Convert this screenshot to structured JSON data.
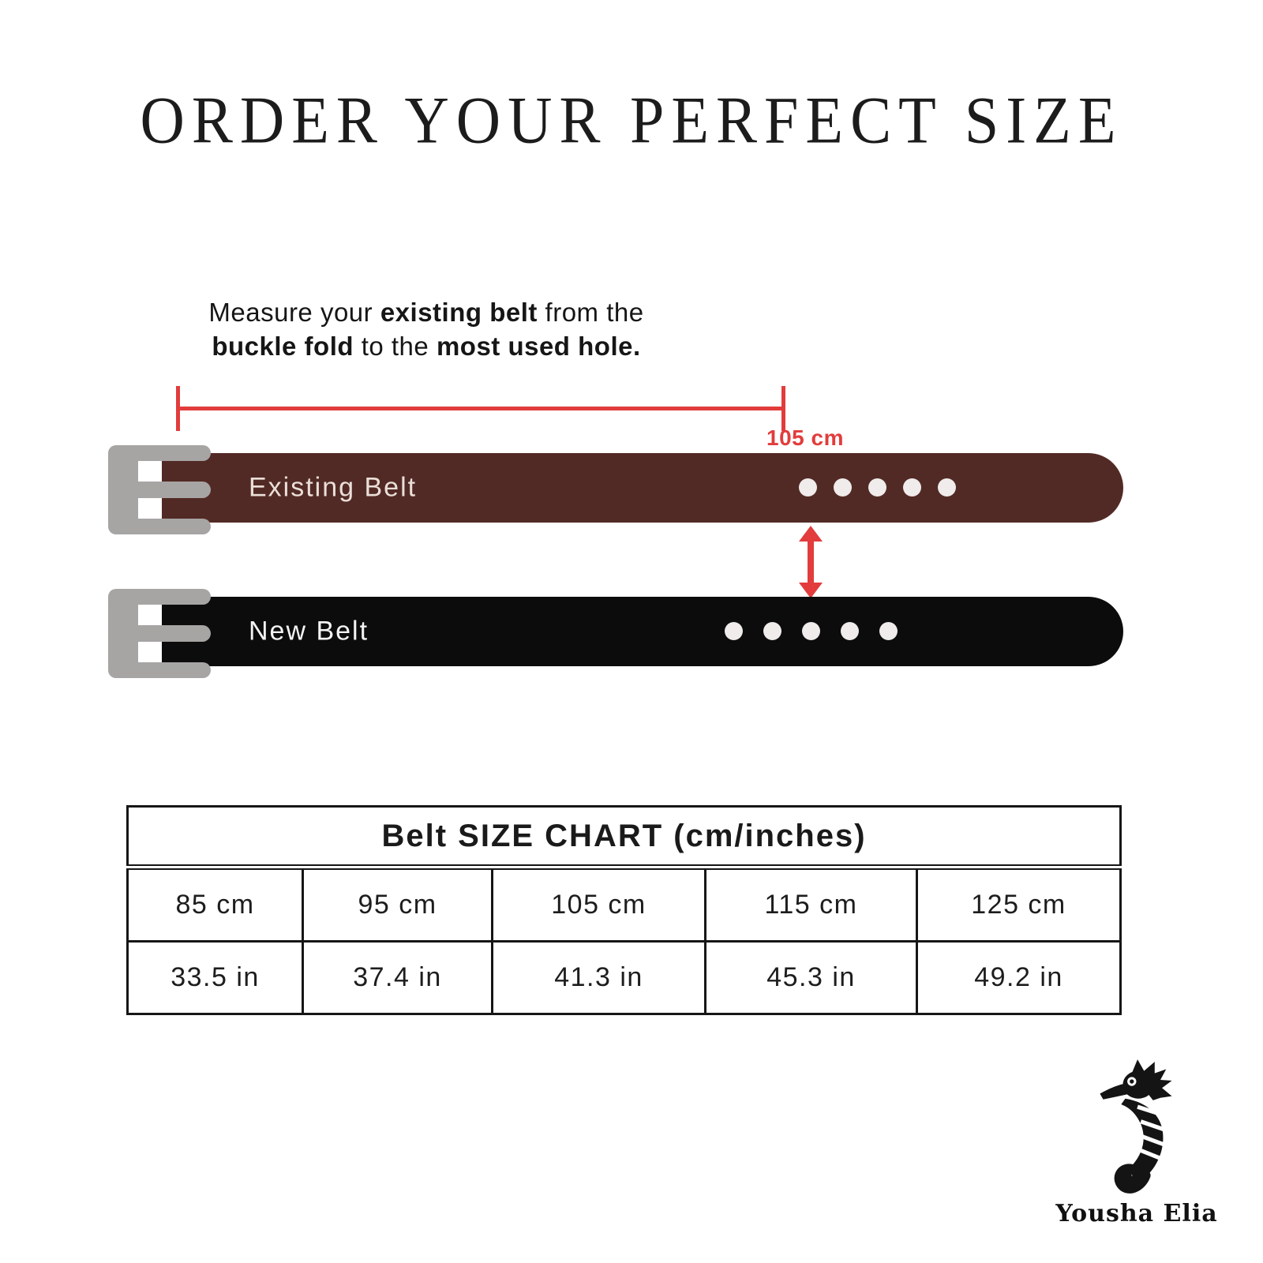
{
  "title": "ORDER YOUR PERFECT SIZE",
  "instruction": {
    "l1a": "Measure your ",
    "l1b": "existing belt",
    "l1c": " from the",
    "l2a": "buckle fold",
    "l2b": " to the ",
    "l2c": "most used hole."
  },
  "measurement": {
    "label": "105 cm",
    "color": "#e23c3c"
  },
  "belts": [
    {
      "name": "Existing Belt",
      "color": "#522a25",
      "holes": 5
    },
    {
      "name": "New Belt",
      "color": "#0c0c0c",
      "holes": 5
    }
  ],
  "buckle_color": "#a7a4a4",
  "size_chart": {
    "title": "Belt SIZE CHART (cm/inches)",
    "cm": [
      "85 cm",
      "95 cm",
      "105 cm",
      "115 cm",
      "125 cm"
    ],
    "inches": [
      "33.5 in",
      "37.4 in",
      "41.3 in",
      "45.3 in",
      "49.2 in"
    ]
  },
  "logo": {
    "brand": "Yousha Elia"
  }
}
